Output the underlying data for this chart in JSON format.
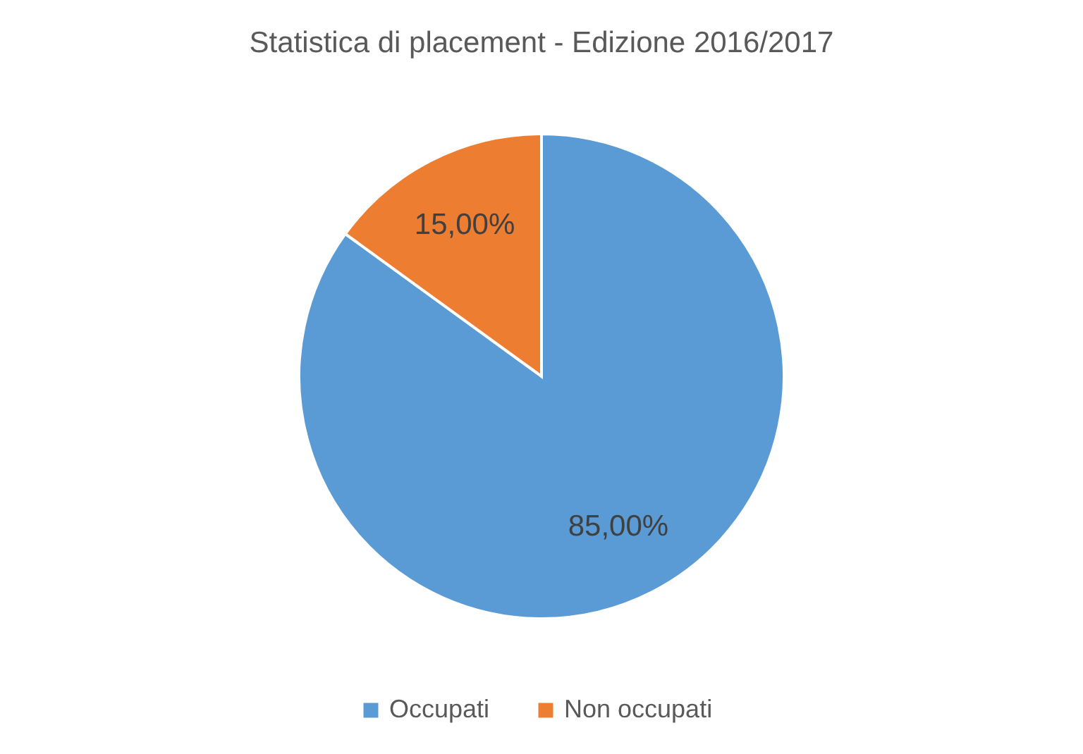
{
  "chart_data": {
    "type": "pie",
    "title": "Statistica di placement - Edizione 2016/2017",
    "categories": [
      "Occupati",
      "Non occupati"
    ],
    "values": [
      85,
      15
    ],
    "colors": [
      "#5b9bd5",
      "#ed7d31"
    ],
    "value_labels": [
      "85,00%",
      "15,00%"
    ],
    "legend": "bottom"
  }
}
